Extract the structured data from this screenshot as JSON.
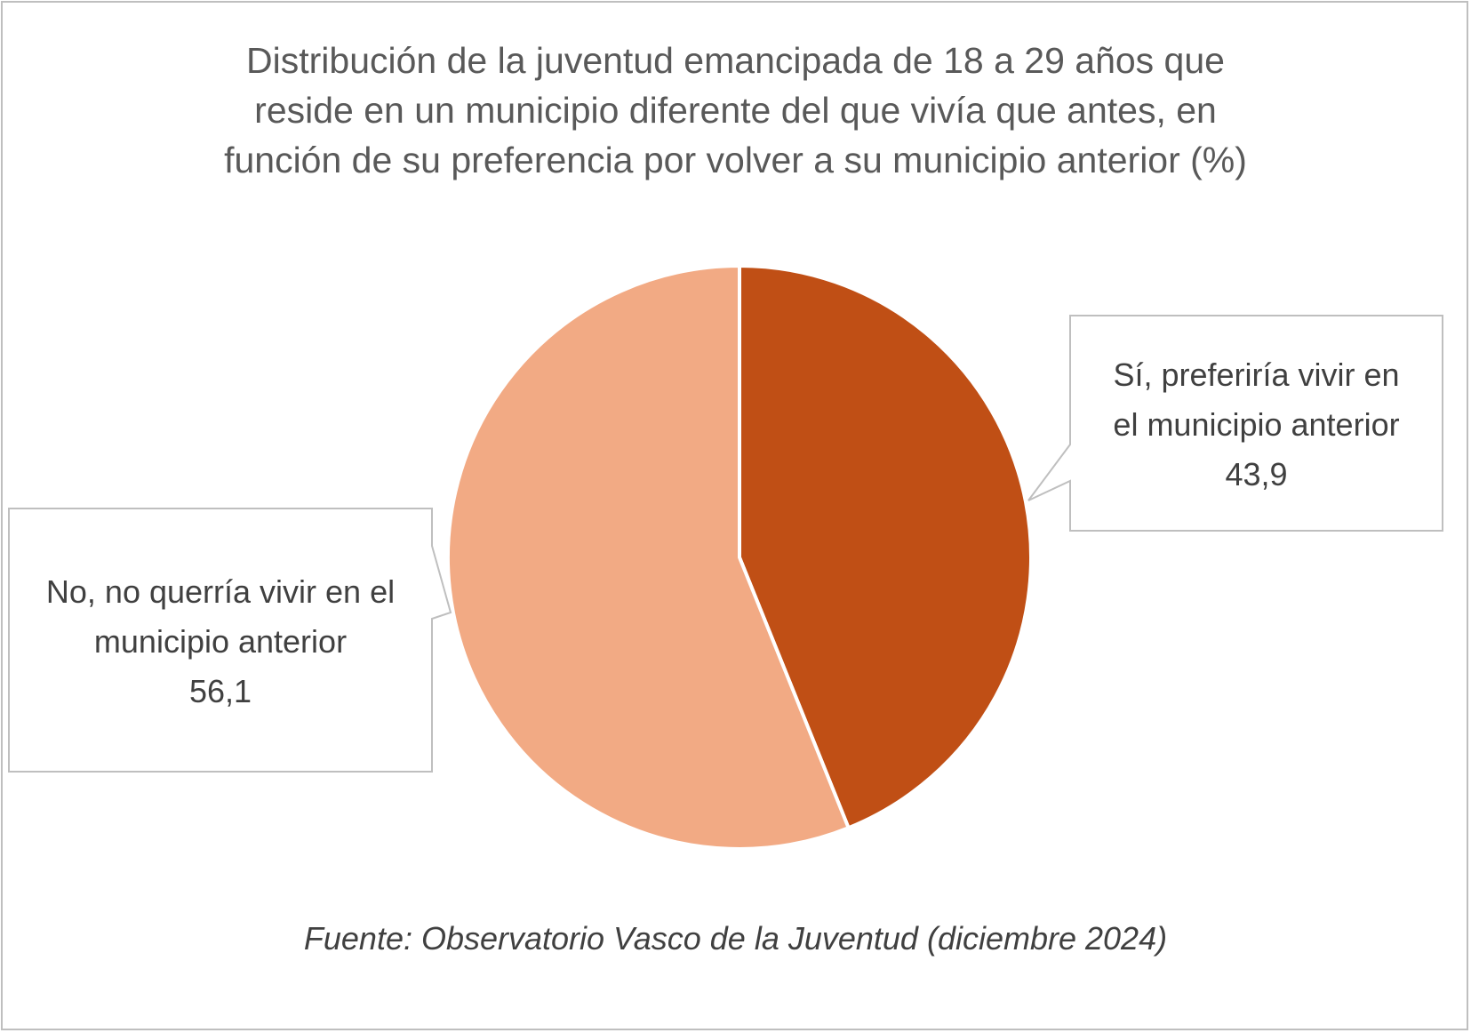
{
  "chart_data": {
    "type": "pie",
    "title_lines": [
      "Distribución de la juventud emancipada de 18 a 29 años  que",
      "reside en un municipio diferente del que vivía que antes, en",
      "función de su preferencia por volver a su municipio anterior (%)"
    ],
    "slices": [
      {
        "label_lines": [
          "Sí, preferiría vivir en",
          "el municipio anterior"
        ],
        "value": 43.9,
        "value_label": "43,9",
        "color": "#c04f15"
      },
      {
        "label_lines": [
          "No, no querría vivir en el",
          "municipio anterior"
        ],
        "value": 56.1,
        "value_label": "56,1",
        "color": "#f2aa84"
      }
    ],
    "source": "Fuente: Observatorio Vasco de la Juventud (diciembre 2024)"
  }
}
